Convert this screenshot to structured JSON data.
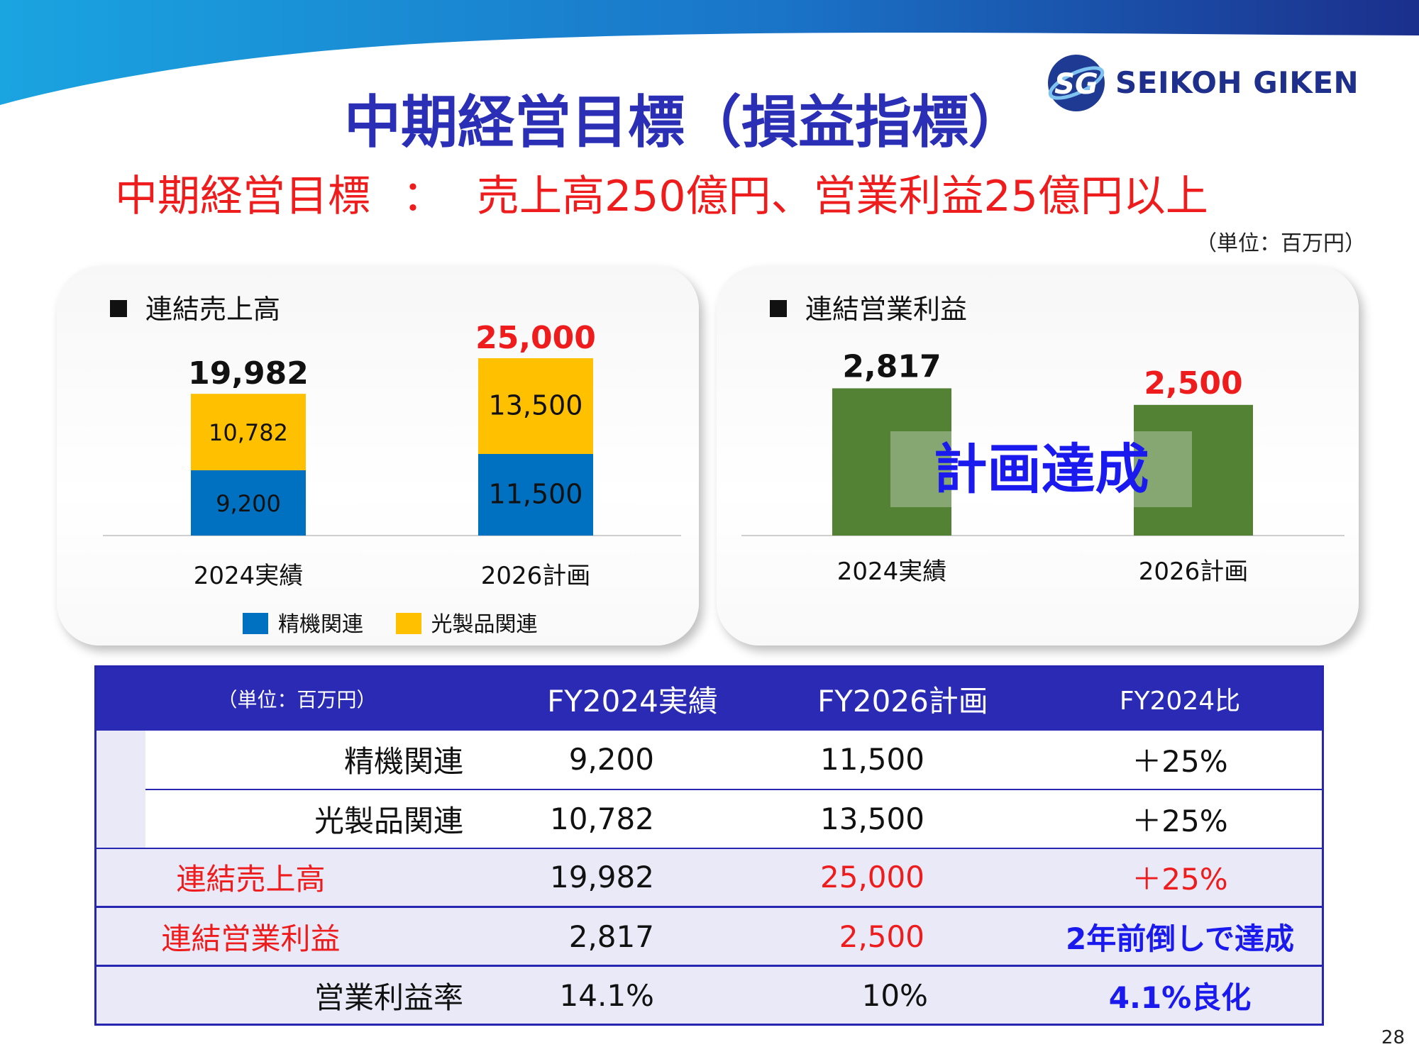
{
  "header": {
    "title": "中期経営目標（損益指標）",
    "subtitle_left": "中期経営目標",
    "subtitle_sep": "：",
    "subtitle_right": "売上高250億円、営業利益25億円以上",
    "unit": "（単位：百万円）",
    "logo_text": "SEIKOH GIKEN",
    "logo_mark": "SG"
  },
  "colors": {
    "brand_blue": "#2a2fb5",
    "accent_red": "#ee1c1c",
    "seiki_blue": "#0070c0",
    "optical_yellow": "#ffc000",
    "profit_green": "#548235"
  },
  "chart_data": [
    {
      "type": "bar",
      "stacked": true,
      "title": "連結売上高",
      "categories": [
        "2024実績",
        "2026計画"
      ],
      "series": [
        {
          "name": "精機関連",
          "values": [
            9200,
            11500
          ],
          "labels": [
            "9,200",
            "11,500"
          ]
        },
        {
          "name": "光製品関連",
          "values": [
            10782,
            13500
          ],
          "labels": [
            "10,782",
            "13,500"
          ]
        }
      ],
      "totals": [
        19982,
        25000
      ],
      "total_labels": [
        "19,982",
        "25,000"
      ],
      "ylim": [
        0,
        28000
      ],
      "grid": false,
      "legend": "bottom"
    },
    {
      "type": "bar",
      "title": "連結営業利益",
      "categories": [
        "2024実績",
        "2026計画"
      ],
      "values": [
        2817,
        2500
      ],
      "value_labels": [
        "2,817",
        "2,500"
      ],
      "ylim": [
        0,
        3800
      ],
      "grid": false,
      "annotation": "計画達成"
    }
  ],
  "table": {
    "unit": "（単位：百万円）",
    "headers": [
      "FY2024実績",
      "FY2026計画",
      "FY2024比"
    ],
    "rows": [
      {
        "label": "精機関連",
        "fy2024": "9,200",
        "fy2026": "11,500",
        "ratio": "＋25%"
      },
      {
        "label": "光製品関連",
        "fy2024": "10,782",
        "fy2026": "13,500",
        "ratio": "＋25%"
      },
      {
        "label": "連結売上高",
        "fy2024": "19,982",
        "fy2026": "25,000",
        "ratio": "＋25%"
      },
      {
        "label": "連結営業利益",
        "fy2024": "2,817",
        "fy2026": "2,500",
        "ratio": "2年前倒しで達成"
      },
      {
        "label": "営業利益率",
        "fy2024": "14.1%",
        "fy2026": "10%",
        "ratio": "4.1%良化"
      }
    ]
  },
  "page_number": "28"
}
